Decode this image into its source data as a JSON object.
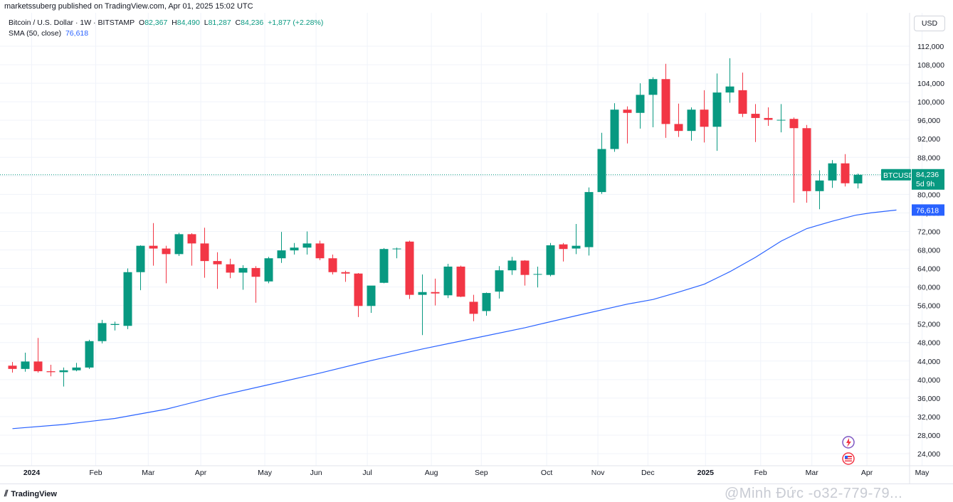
{
  "header": {
    "published": "marketssuberg published on TradingView.com, Apr 01, 2025 15:02 UTC"
  },
  "legend": {
    "symbol": "Bitcoin / U.S. Dollar · 1W · BITSTAMP",
    "o_label": "O",
    "o_value": "82,367",
    "h_label": "H",
    "h_value": "84,490",
    "l_label": "L",
    "l_value": "81,287",
    "c_label": "C",
    "c_value": "84,236",
    "change": "+1,877 (+2.28%)",
    "sma_label": "SMA (50, close)",
    "sma_value": "76,618"
  },
  "currency_button": "USD",
  "price_tag": {
    "symbol": "BTCUSD",
    "price": "84,236",
    "countdown": "5d 9h"
  },
  "sma_tag": "76,618",
  "footer": {
    "logo_text": "TradingView",
    "watermark": "@Minh Đức -o32-779-79..."
  },
  "colors": {
    "up": "#089981",
    "down": "#f23645",
    "sma": "#2962ff",
    "grid": "#f0f3fa",
    "last_price": "#089981"
  },
  "chart_data": {
    "type": "candlestick",
    "interval": "1W",
    "ylim": [
      22500,
      115000
    ],
    "y_ticks": [
      "112,000",
      "108,000",
      "104,000",
      "100,000",
      "96,000",
      "92,000",
      "88,000",
      "84,000",
      "80,000",
      "76,000",
      "72,000",
      "68,000",
      "64,000",
      "60,000",
      "56,000",
      "52,000",
      "48,000",
      "44,000",
      "40,000",
      "36,000",
      "32,000",
      "28,000",
      "24,000"
    ],
    "x_ticks": [
      {
        "label": "2024",
        "index": 1.5,
        "bold": true
      },
      {
        "label": "Feb",
        "index": 6.5
      },
      {
        "label": "Mar",
        "index": 10.6
      },
      {
        "label": "Apr",
        "index": 14.7
      },
      {
        "label": "May",
        "index": 19.7
      },
      {
        "label": "Jun",
        "index": 23.7
      },
      {
        "label": "Jul",
        "index": 27.7
      },
      {
        "label": "Aug",
        "index": 32.7
      },
      {
        "label": "Sep",
        "index": 36.6
      },
      {
        "label": "Oct",
        "index": 41.7
      },
      {
        "label": "Nov",
        "index": 45.7
      },
      {
        "label": "Dec",
        "index": 49.6
      },
      {
        "label": "2025",
        "index": 54.1,
        "bold": true
      },
      {
        "label": "Feb",
        "index": 58.4
      },
      {
        "label": "Mar",
        "index": 62.4
      },
      {
        "label": "Apr",
        "index": 66.7
      },
      {
        "label": "May",
        "index": 71.0
      }
    ],
    "candles": [
      {
        "o": 43000,
        "h": 43800,
        "l": 41500,
        "c": 42300
      },
      {
        "o": 42300,
        "h": 45800,
        "l": 41700,
        "c": 43900
      },
      {
        "o": 43900,
        "h": 49000,
        "l": 41500,
        "c": 41800
      },
      {
        "o": 41800,
        "h": 43200,
        "l": 40700,
        "c": 41600
      },
      {
        "o": 41600,
        "h": 42600,
        "l": 38500,
        "c": 42000
      },
      {
        "o": 42000,
        "h": 43600,
        "l": 41800,
        "c": 42600
      },
      {
        "o": 42600,
        "h": 48600,
        "l": 42300,
        "c": 48300
      },
      {
        "o": 48300,
        "h": 52900,
        "l": 47800,
        "c": 52200
      },
      {
        "o": 51800,
        "h": 52500,
        "l": 50600,
        "c": 52000
      },
      {
        "o": 51600,
        "h": 64000,
        "l": 50900,
        "c": 63200
      },
      {
        "o": 63200,
        "h": 69000,
        "l": 59300,
        "c": 68900
      },
      {
        "o": 68900,
        "h": 73800,
        "l": 64600,
        "c": 68300
      },
      {
        "o": 68300,
        "h": 68900,
        "l": 60800,
        "c": 67100
      },
      {
        "o": 67100,
        "h": 71700,
        "l": 66700,
        "c": 71400
      },
      {
        "o": 71400,
        "h": 71600,
        "l": 64600,
        "c": 69400
      },
      {
        "o": 69400,
        "h": 72800,
        "l": 62000,
        "c": 65600
      },
      {
        "o": 65600,
        "h": 67500,
        "l": 59600,
        "c": 64900
      },
      {
        "o": 64900,
        "h": 66100,
        "l": 61900,
        "c": 63100
      },
      {
        "o": 63100,
        "h": 64700,
        "l": 59400,
        "c": 64100
      },
      {
        "o": 64100,
        "h": 64500,
        "l": 56600,
        "c": 62200
      },
      {
        "o": 61200,
        "h": 66500,
        "l": 60800,
        "c": 66200
      },
      {
        "o": 66200,
        "h": 71900,
        "l": 65200,
        "c": 67900
      },
      {
        "o": 67900,
        "h": 69500,
        "l": 67000,
        "c": 68500
      },
      {
        "o": 68500,
        "h": 72000,
        "l": 67000,
        "c": 69400
      },
      {
        "o": 69400,
        "h": 70000,
        "l": 65800,
        "c": 66200
      },
      {
        "o": 66200,
        "h": 67000,
        "l": 62700,
        "c": 63200
      },
      {
        "o": 63200,
        "h": 63500,
        "l": 61100,
        "c": 62900
      },
      {
        "o": 62900,
        "h": 63000,
        "l": 53500,
        "c": 55900
      },
      {
        "o": 55900,
        "h": 60200,
        "l": 54400,
        "c": 60300
      },
      {
        "o": 60900,
        "h": 68400,
        "l": 60800,
        "c": 68200
      },
      {
        "o": 68200,
        "h": 68500,
        "l": 66200,
        "c": 68300
      },
      {
        "o": 69800,
        "h": 70000,
        "l": 57400,
        "c": 58300
      },
      {
        "o": 58300,
        "h": 62700,
        "l": 49600,
        "c": 58900
      },
      {
        "o": 58900,
        "h": 61800,
        "l": 56000,
        "c": 58600
      },
      {
        "o": 58200,
        "h": 65000,
        "l": 57600,
        "c": 64400
      },
      {
        "o": 64400,
        "h": 64600,
        "l": 57800,
        "c": 57900
      },
      {
        "o": 56800,
        "h": 58300,
        "l": 52600,
        "c": 54200
      },
      {
        "o": 54800,
        "h": 58800,
        "l": 53800,
        "c": 58700
      },
      {
        "o": 59000,
        "h": 64500,
        "l": 57500,
        "c": 63600
      },
      {
        "o": 63600,
        "h": 66500,
        "l": 62600,
        "c": 65700
      },
      {
        "o": 65700,
        "h": 65800,
        "l": 60300,
        "c": 62600
      },
      {
        "o": 62800,
        "h": 64400,
        "l": 59900,
        "c": 62800
      },
      {
        "o": 62600,
        "h": 69500,
        "l": 62300,
        "c": 69000
      },
      {
        "o": 69200,
        "h": 69500,
        "l": 65500,
        "c": 68200
      },
      {
        "o": 68300,
        "h": 73600,
        "l": 67100,
        "c": 68900
      },
      {
        "o": 68600,
        "h": 81500,
        "l": 66800,
        "c": 80500
      },
      {
        "o": 80500,
        "h": 93300,
        "l": 80100,
        "c": 89800
      },
      {
        "o": 89800,
        "h": 99700,
        "l": 89200,
        "c": 98300
      },
      {
        "o": 98300,
        "h": 99000,
        "l": 91000,
        "c": 97600
      },
      {
        "o": 97600,
        "h": 104000,
        "l": 94200,
        "c": 101500
      },
      {
        "o": 101500,
        "h": 105300,
        "l": 94500,
        "c": 104900
      },
      {
        "o": 104900,
        "h": 108200,
        "l": 92200,
        "c": 95200
      },
      {
        "o": 95200,
        "h": 99600,
        "l": 92400,
        "c": 93700
      },
      {
        "o": 93700,
        "h": 98800,
        "l": 91600,
        "c": 98300
      },
      {
        "o": 98300,
        "h": 102500,
        "l": 91200,
        "c": 94600
      },
      {
        "o": 94600,
        "h": 106100,
        "l": 89400,
        "c": 102000
      },
      {
        "o": 102000,
        "h": 109400,
        "l": 99800,
        "c": 103300
      },
      {
        "o": 102500,
        "h": 106300,
        "l": 96700,
        "c": 97400
      },
      {
        "o": 97400,
        "h": 99500,
        "l": 91300,
        "c": 96500
      },
      {
        "o": 96500,
        "h": 98800,
        "l": 94800,
        "c": 96100
      },
      {
        "o": 96100,
        "h": 99500,
        "l": 93400,
        "c": 96100
      },
      {
        "o": 96300,
        "h": 96600,
        "l": 78200,
        "c": 94300
      },
      {
        "o": 94300,
        "h": 95000,
        "l": 78200,
        "c": 80700
      },
      {
        "o": 80700,
        "h": 85200,
        "l": 76800,
        "c": 83000
      },
      {
        "o": 83000,
        "h": 87400,
        "l": 81400,
        "c": 86700
      },
      {
        "o": 86700,
        "h": 88700,
        "l": 81700,
        "c": 82400
      },
      {
        "o": 82367,
        "h": 84490,
        "l": 81287,
        "c": 84236
      }
    ],
    "series": [
      {
        "name": "SMA (50, close)",
        "points": [
          [
            0,
            29400
          ],
          [
            4,
            30300
          ],
          [
            8,
            31600
          ],
          [
            12,
            33600
          ],
          [
            16,
            36400
          ],
          [
            20,
            38900
          ],
          [
            24,
            41400
          ],
          [
            28,
            44100
          ],
          [
            32,
            46600
          ],
          [
            36,
            48900
          ],
          [
            40,
            51200
          ],
          [
            44,
            53800
          ],
          [
            48,
            56300
          ],
          [
            50,
            57300
          ],
          [
            52,
            58900
          ],
          [
            54,
            60600
          ],
          [
            56,
            63300
          ],
          [
            58,
            66400
          ],
          [
            60,
            69900
          ],
          [
            62,
            72600
          ],
          [
            64,
            74200
          ],
          [
            65.8,
            75500
          ],
          [
            67,
            76000
          ],
          [
            69,
            76618
          ]
        ]
      }
    ],
    "last_price": 84236,
    "last_sma": 76618
  }
}
